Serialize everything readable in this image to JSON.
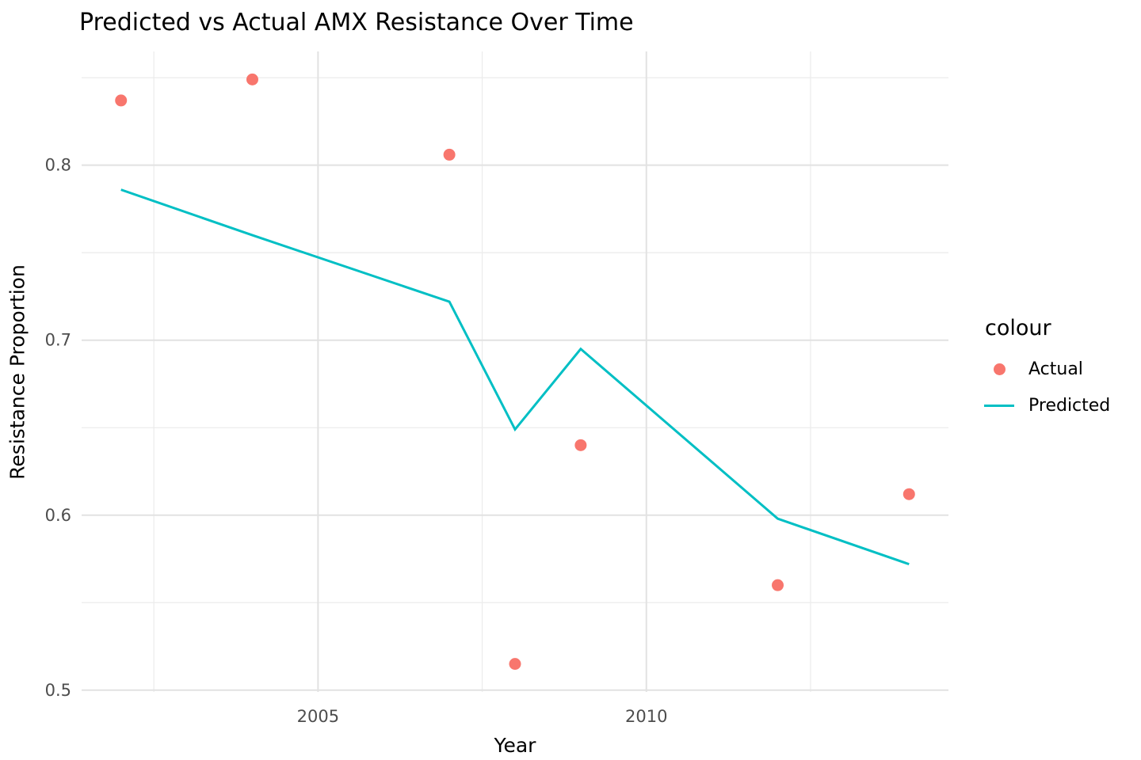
{
  "title": "Predicted vs Actual AMX Resistance Over Time",
  "legend": {
    "title": "colour",
    "entries": [
      {
        "label": "Actual",
        "type": "point",
        "color": "#F8766D"
      },
      {
        "label": "Predicted",
        "type": "line",
        "color": "#00BFC4"
      }
    ]
  },
  "colors": {
    "background": "#ffffff",
    "major_gridline": "#E2E2E2",
    "minor_gridline": "#ECECEC",
    "tick_label": "#4D4D4D",
    "text": "#000000",
    "actual": "#F8766D",
    "predicted": "#00BFC4"
  },
  "chart_data": {
    "type": "scatter+line",
    "title": "Predicted vs Actual AMX Resistance Over Time",
    "xlabel": "Year",
    "ylabel": "Resistance Proportion",
    "xlim": [
      2001.4,
      2014.6
    ],
    "ylim": [
      0.499,
      0.865
    ],
    "grid": true,
    "legend_position": "right",
    "legend_title": "colour",
    "x_ticks": [
      2005,
      2010
    ],
    "x_tick_labels": [
      "2005",
      "2010"
    ],
    "y_ticks": [
      0.5,
      0.6,
      0.7,
      0.8
    ],
    "y_tick_labels": [
      "0.5",
      "0.6",
      "0.7",
      "0.8"
    ],
    "x_minor_gridlines": [
      2002.5,
      2007.5,
      2012.5
    ],
    "y_minor_gridlines": [
      0.55,
      0.65,
      0.75,
      0.85
    ],
    "series": [
      {
        "name": "Actual",
        "type": "scatter",
        "color": "#F8766D",
        "x": [
          2002,
          2004,
          2007,
          2008,
          2009,
          2012,
          2014
        ],
        "y": [
          0.837,
          0.849,
          0.806,
          0.515,
          0.64,
          0.56,
          0.612
        ]
      },
      {
        "name": "Predicted",
        "type": "line",
        "color": "#00BFC4",
        "x": [
          2002,
          2004,
          2007,
          2008,
          2009,
          2012,
          2014
        ],
        "y": [
          0.786,
          0.76,
          0.722,
          0.649,
          0.695,
          0.598,
          0.572
        ]
      }
    ]
  }
}
